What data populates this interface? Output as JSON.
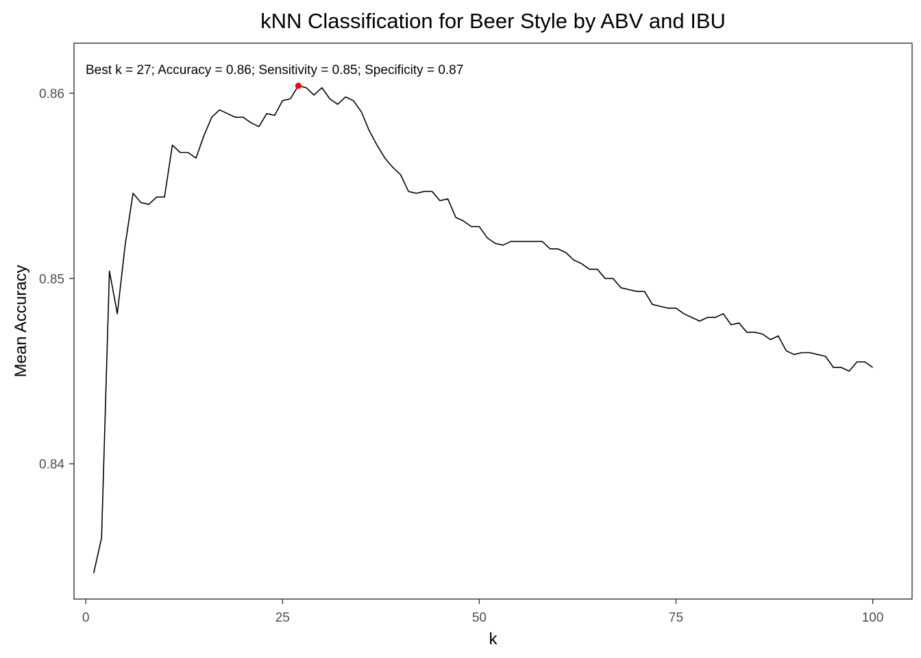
{
  "chart_data": {
    "type": "line",
    "title": "kNN Classification for Beer Style by ABV and IBU",
    "xlabel": "k",
    "ylabel": "Mean Accuracy",
    "xlim": [
      -1.5,
      105
    ],
    "ylim": [
      0.8327,
      0.8627
    ],
    "x_ticks": [
      0,
      25,
      50,
      75,
      100
    ],
    "x_tick_labels": [
      "0",
      "25",
      "50",
      "75",
      "100"
    ],
    "y_ticks": [
      0.84,
      0.85,
      0.86
    ],
    "y_tick_labels": [
      "0.84",
      "0.85",
      "0.86"
    ],
    "grid": false,
    "annotation": "Best k = 27; Accuracy = 0.86; Sensitivity = 0.85; Specificity = 0.87",
    "highlight_point": {
      "x": 27,
      "y": 0.8604,
      "color": "#ff0000"
    },
    "line_color": "#000000",
    "series": [
      {
        "x": [
          1,
          2,
          3,
          4,
          5,
          6,
          7,
          8,
          9,
          10,
          11,
          12,
          13,
          14,
          15,
          16,
          17,
          18,
          19,
          20,
          21,
          22,
          23,
          24,
          25,
          26,
          27,
          28,
          29,
          30,
          31,
          32,
          33,
          34,
          35,
          36,
          37,
          38,
          39,
          40,
          41,
          42,
          43,
          44,
          45,
          46,
          47,
          48,
          49,
          50,
          51,
          52,
          53,
          54,
          55,
          56,
          57,
          58,
          59,
          60,
          61,
          62,
          63,
          64,
          65,
          66,
          67,
          68,
          69,
          70,
          71,
          72,
          73,
          74,
          75,
          76,
          77,
          78,
          79,
          80,
          81,
          82,
          83,
          84,
          85,
          86,
          87,
          88,
          89,
          90,
          91,
          92,
          93,
          94,
          95,
          96,
          97,
          98,
          99,
          100
        ],
        "y": [
          0.8341,
          0.836,
          0.8504,
          0.8481,
          0.8518,
          0.8546,
          0.8541,
          0.854,
          0.8544,
          0.8544,
          0.8572,
          0.8568,
          0.8568,
          0.8565,
          0.8577,
          0.8587,
          0.8591,
          0.8589,
          0.8587,
          0.8587,
          0.8584,
          0.8582,
          0.8589,
          0.8588,
          0.8596,
          0.8597,
          0.8604,
          0.8603,
          0.8599,
          0.8603,
          0.8597,
          0.8594,
          0.8598,
          0.8596,
          0.859,
          0.858,
          0.8572,
          0.8565,
          0.856,
          0.8556,
          0.8547,
          0.8546,
          0.8547,
          0.8547,
          0.8542,
          0.8543,
          0.8533,
          0.8531,
          0.8528,
          0.8528,
          0.8522,
          0.8519,
          0.8518,
          0.852,
          0.852,
          0.852,
          0.852,
          0.852,
          0.8516,
          0.8516,
          0.8514,
          0.851,
          0.8508,
          0.8505,
          0.8505,
          0.85,
          0.85,
          0.8495,
          0.8494,
          0.8493,
          0.8493,
          0.8486,
          0.8485,
          0.8484,
          0.8484,
          0.8481,
          0.8479,
          0.8477,
          0.8479,
          0.8479,
          0.8481,
          0.8475,
          0.8476,
          0.8471,
          0.8471,
          0.847,
          0.8467,
          0.8469,
          0.8461,
          0.8459,
          0.846,
          0.846,
          0.8459,
          0.8458,
          0.8452,
          0.8452,
          0.845,
          0.8455,
          0.8455,
          0.8452
        ]
      }
    ]
  }
}
